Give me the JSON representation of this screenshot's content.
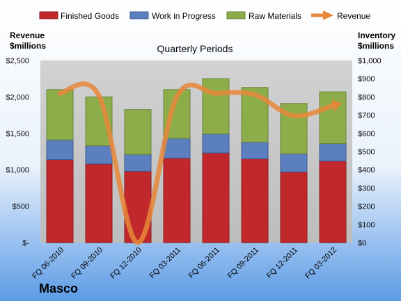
{
  "company": "Masco",
  "colors": {
    "finished_goods": "#c0282b",
    "work_in_progress": "#5b7fbf",
    "raw_materials": "#8cad4a",
    "revenue": "#e8873a",
    "plot_bg": "#c8c8c8",
    "bg_top": "#ffffff",
    "bg_bottom": "#5c9be6"
  },
  "chart_data": {
    "type": "bar",
    "stacked": true,
    "subtitle": "Quarterly Periods",
    "left_axis_label": [
      "Revenue",
      "$millions"
    ],
    "right_axis_label": [
      "Inventory",
      "$millions"
    ],
    "categories": [
      "FQ 06-2010",
      "FQ 09-2010",
      "FQ 12-2010",
      "FQ 03-2011",
      "FQ 06-2011",
      "FQ 09-2011",
      "FQ 12-2011",
      "FQ 03-2012"
    ],
    "left_ticks": [
      "$-",
      "$500",
      "$1,000",
      "$1,500",
      "$2,000",
      "$2,500"
    ],
    "right_ticks": [
      "$0",
      "$100",
      "$200",
      "$300",
      "$400",
      "$500",
      "$600",
      "$700",
      "$800",
      "$900",
      "$1,000"
    ],
    "left_ylim": [
      0,
      2500
    ],
    "right_ylim": [
      0,
      1000
    ],
    "series": [
      {
        "name": "Finished Goods",
        "axis": "right",
        "values": [
          456,
          432,
          392,
          464,
          492,
          460,
          388,
          448
        ]
      },
      {
        "name": "Work in Progress",
        "axis": "right",
        "values": [
          108,
          100,
          92,
          108,
          104,
          92,
          100,
          96
        ]
      },
      {
        "name": "Raw Materials",
        "axis": "right",
        "values": [
          276,
          268,
          246,
          268,
          304,
          300,
          276,
          284
        ]
      },
      {
        "name": "Revenue",
        "axis": "left",
        "type": "line",
        "smooth": true,
        "values": [
          2050,
          2020,
          0,
          2000,
          2050,
          2030,
          1740,
          1880
        ]
      }
    ],
    "legend_position": "top",
    "grid": false
  }
}
